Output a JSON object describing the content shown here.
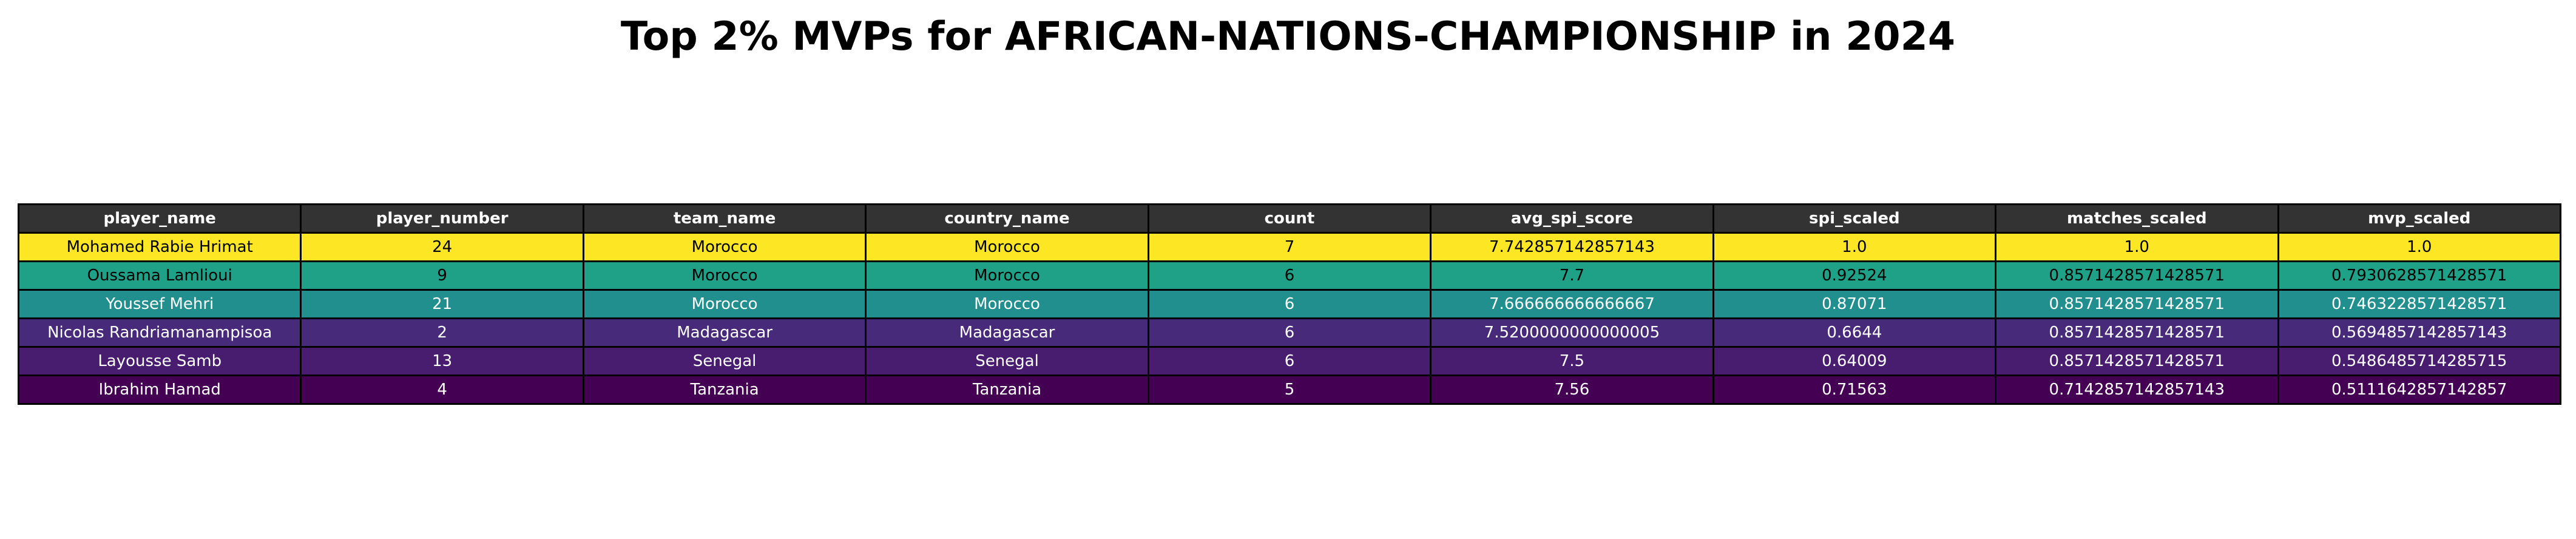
{
  "chart_data": {
    "type": "table",
    "title": "Top 2% MVPs for AFRICAN-NATIONS-CHAMPIONSHIP in 2024",
    "columns": [
      "player_name",
      "player_number",
      "team_name",
      "country_name",
      "count",
      "avg_spi_score",
      "spi_scaled",
      "matches_scaled",
      "mvp_scaled"
    ],
    "rows": [
      {
        "cells": [
          "Mohamed Rabie Hrimat",
          "24",
          "Morocco",
          "Morocco",
          "7",
          "7.742857142857143",
          "1.0",
          "1.0",
          "1.0"
        ],
        "color": "#fde725",
        "text_color": "#000000"
      },
      {
        "cells": [
          "Oussama Lamlioui",
          "9",
          "Morocco",
          "Morocco",
          "6",
          "7.7",
          "0.92524",
          "0.8571428571428571",
          "0.7930628571428571"
        ],
        "color": "#1fa187",
        "text_color": "#000000"
      },
      {
        "cells": [
          "Youssef Mehri",
          "21",
          "Morocco",
          "Morocco",
          "6",
          "7.666666666666667",
          "0.87071",
          "0.8571428571428571",
          "0.7463228571428571"
        ],
        "color": "#218f8d",
        "text_color": "#ffffff"
      },
      {
        "cells": [
          "Nicolas Randriamanampisoa",
          "2",
          "Madagascar",
          "Madagascar",
          "6",
          "7.5200000000000005",
          "0.6644",
          "0.8571428571428571",
          "0.5694857142857143"
        ],
        "color": "#472a7a",
        "text_color": "#ffffff"
      },
      {
        "cells": [
          "Layousse Samb",
          "13",
          "Senegal",
          "Senegal",
          "6",
          "7.5",
          "0.64009",
          "0.8571428571428571",
          "0.5486485714285715"
        ],
        "color": "#481c6e",
        "text_color": "#ffffff"
      },
      {
        "cells": [
          "Ibrahim Hamad",
          "4",
          "Tanzania",
          "Tanzania",
          "5",
          "7.56",
          "0.71563",
          "0.7142857142857143",
          "0.5111642857142857"
        ],
        "color": "#440154",
        "text_color": "#ffffff"
      }
    ],
    "header_color": "#333333",
    "header_text_color": "#ffffff"
  }
}
